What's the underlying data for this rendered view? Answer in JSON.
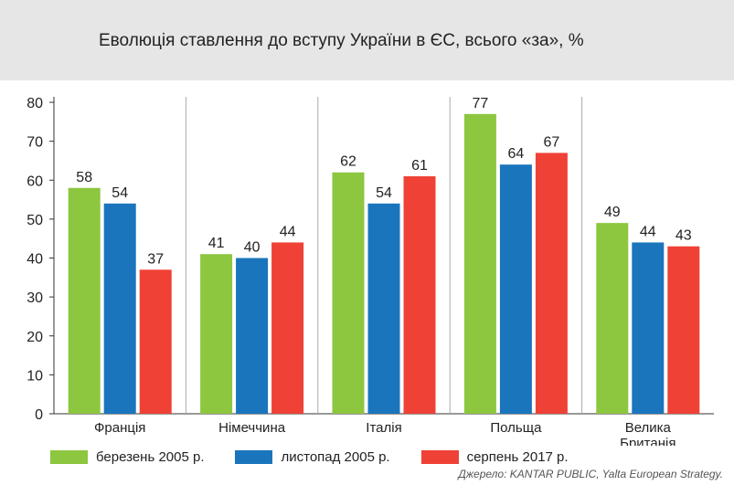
{
  "title": "Еволюція ставлення до вступу України в ЄС,  всього «за», %",
  "legend": [
    {
      "label": "березень 2005 р.",
      "color": "#8dc63f"
    },
    {
      "label": "листопад 2005 р.",
      "color": "#1a75bc"
    },
    {
      "label": "серпень 2017 р.",
      "color": "#ef4136"
    }
  ],
  "source": "Джерело: KANTAR PUBLIC, Yalta European Strategy.",
  "chart_data": {
    "type": "bar",
    "categories": [
      [
        "Франція"
      ],
      [
        "Німеччина"
      ],
      [
        "Італія"
      ],
      [
        "Польща"
      ],
      [
        "Велика",
        "Британія"
      ]
    ],
    "series": [
      {
        "name": "березень 2005 р.",
        "color": "#8dc63f",
        "values": [
          58,
          41,
          62,
          77,
          49
        ]
      },
      {
        "name": "листопад 2005 р.",
        "color": "#1a75bc",
        "values": [
          54,
          40,
          54,
          64,
          44
        ]
      },
      {
        "name": "серпень 2017 р.",
        "color": "#ef4136",
        "values": [
          37,
          44,
          61,
          67,
          43
        ]
      }
    ],
    "ylim": [
      0,
      80
    ],
    "yticks": [
      0,
      10,
      20,
      30,
      40,
      50,
      60,
      70,
      80
    ],
    "grid": "vertical separators between categories",
    "legend_position": "bottom"
  }
}
